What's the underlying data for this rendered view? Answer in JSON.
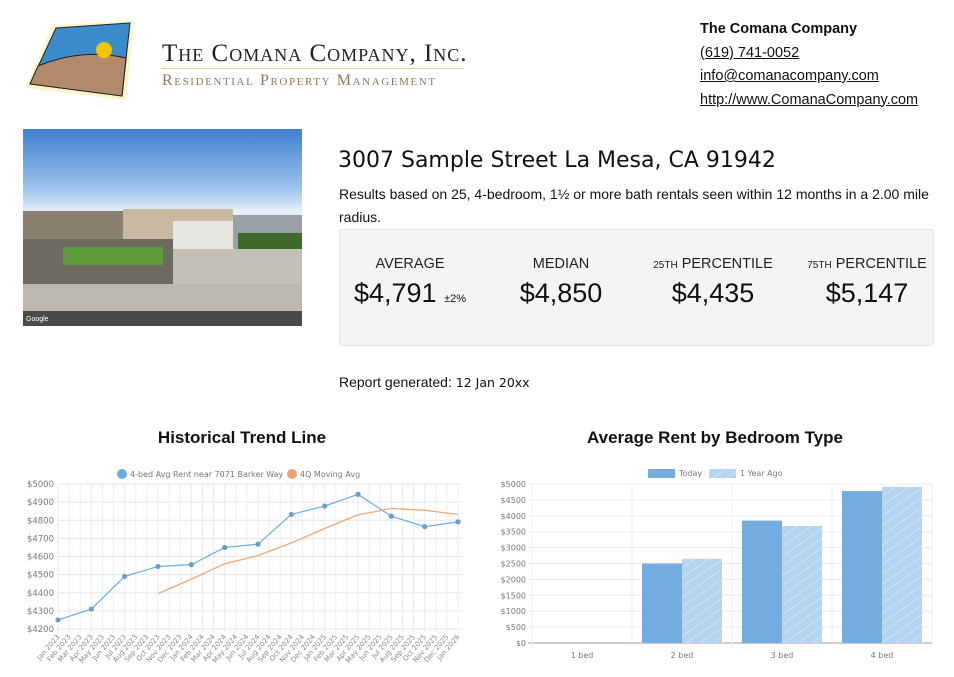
{
  "header": {
    "company_name": "The Comana Company, Inc.",
    "tagline": "Residential Property Management",
    "contact": {
      "name": "The Comana Company",
      "phone": "(619) 741-0052",
      "email": "info@comanacompany.com",
      "website": "http://www.ComanaCompany.com"
    }
  },
  "property": {
    "address": "3007 Sample Street La Mesa, CA 91942",
    "results_text": "Results based on 25, 4-bedroom, 1½ or more bath rentals seen within 12 months in a 2.00 mile radius.",
    "photo_watermark": "Google"
  },
  "stats": [
    {
      "label": "AVERAGE",
      "sup": "",
      "value": "$4,791",
      "note": "±2%"
    },
    {
      "label": "PERCENTILE",
      "sup": "",
      "value": "$4,850",
      "note": "",
      "label_full": "MEDIAN"
    },
    {
      "label": "PERCENTILE",
      "sup": "25TH",
      "value": "$4,435",
      "note": ""
    },
    {
      "label": "PERCENTILE",
      "sup": "75TH",
      "value": "$5,147",
      "note": ""
    }
  ],
  "report": {
    "label": "Report generated:",
    "date": "12 Jan 20xx"
  },
  "colors": {
    "series_blue": "#6aaee0",
    "series_orange": "#f0a070",
    "bar_today": "#74ade0",
    "bar_ago": "#b5d4f0"
  },
  "chart_data": [
    {
      "type": "line",
      "title": "Historical Trend Line",
      "categories": [
        "Jan 2023",
        "Feb 2023",
        "Mar 2023",
        "Apr 2023",
        "May 2023",
        "Jun 2023",
        "Jul 2023",
        "Aug 2023",
        "Sep 2023",
        "Oct 2023",
        "Nov 2023",
        "Dec 2023",
        "Jan 2024",
        "Feb 2024",
        "Mar 2024",
        "Apr 2024",
        "May 2024",
        "Jun 2024",
        "Jul 2024",
        "Aug 2024",
        "Sep 2024",
        "Oct 2024",
        "Nov 2024",
        "Dec 2024",
        "Jan 2025",
        "Feb 2025",
        "Mar 2025",
        "Apr 2025",
        "May 2025",
        "Jun 2025",
        "Jul 2025",
        "Aug 2025",
        "Sep 2025",
        "Oct 2025",
        "Nov 2025",
        "Dec 2025",
        "Jan 2026"
      ],
      "yticks": [
        "$4200",
        "$4300",
        "$4400",
        "$4500",
        "$4600",
        "$4700",
        "$4800",
        "$4900",
        "$5000"
      ],
      "ylim": [
        4200,
        5000
      ],
      "grid": true,
      "legend_position": "top",
      "series": [
        {
          "name": "4-bed Avg Rent near 7071 Barker Way",
          "color": "#6aaee0",
          "points": [
            [
              "Jan 2023",
              4250
            ],
            [
              "Apr 2023",
              4310
            ],
            [
              "Jul 2023",
              4490
            ],
            [
              "Oct 2023",
              4545
            ],
            [
              "Jan 2024",
              4555
            ],
            [
              "Apr 2024",
              4650
            ],
            [
              "Jul 2024",
              4668
            ],
            [
              "Oct 2024",
              4832
            ],
            [
              "Jan 2025",
              4878
            ],
            [
              "Apr 2025",
              4943
            ],
            [
              "Jul 2025",
              4822
            ],
            [
              "Oct 2025",
              4765
            ],
            [
              "Jan 2026",
              4791
            ]
          ]
        },
        {
          "name": "4Q Moving Avg",
          "color": "#f0a070",
          "points": [
            [
              "Oct 2023",
              4395
            ],
            [
              "Jan 2024",
              4475
            ],
            [
              "Apr 2024",
              4560
            ],
            [
              "Jul 2024",
              4605
            ],
            [
              "Oct 2024",
              4675
            ],
            [
              "Jan 2025",
              4755
            ],
            [
              "Apr 2025",
              4830
            ],
            [
              "Jul 2025",
              4865
            ],
            [
              "Oct 2025",
              4855
            ],
            [
              "Jan 2026",
              4832
            ]
          ]
        }
      ]
    },
    {
      "type": "bar",
      "title": "Average Rent by Bedroom Type",
      "categories": [
        "1 bed",
        "2 bed",
        "3 bed",
        "4 bed"
      ],
      "yticks": [
        "$0",
        "$500",
        "$1000",
        "$1500",
        "$2000",
        "$2500",
        "$3000",
        "$3500",
        "$4000",
        "$4500",
        "$5000"
      ],
      "ylim": [
        0,
        5000
      ],
      "grid": true,
      "legend_position": "top",
      "series": [
        {
          "name": "Today",
          "color": "#74ade0",
          "values": [
            0,
            2500,
            3850,
            4780
          ]
        },
        {
          "name": "1 Year Ago",
          "color": "#b5d4f0",
          "values": [
            0,
            2650,
            3680,
            4910
          ]
        }
      ]
    }
  ]
}
